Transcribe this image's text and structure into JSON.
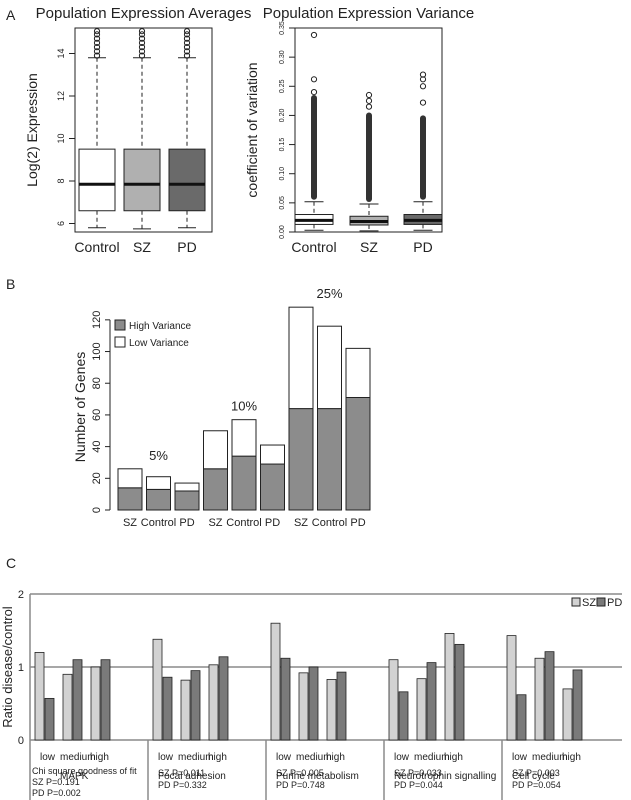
{
  "panels": {
    "A": "A",
    "B": "B",
    "C": "C"
  },
  "chart_data": [
    {
      "type": "box",
      "title": "Population Expression Averages",
      "ylabel": "Log(2) Expression",
      "categories": [
        "Control",
        "SZ",
        "PD"
      ],
      "ylim": [
        5.6,
        15.2
      ],
      "yticks": [
        6,
        8,
        10,
        12,
        14
      ],
      "colors": [
        "#ffffff",
        "#b0b0b0",
        "#6a6a6a"
      ],
      "boxes": [
        {
          "whisker_low": 5.8,
          "q1": 6.6,
          "median": 7.85,
          "q3": 9.5,
          "whisker_high": 13.8,
          "outliers": [
            13.9,
            14.1,
            14.3,
            14.5,
            14.7,
            14.9,
            15.05
          ]
        },
        {
          "whisker_low": 5.75,
          "q1": 6.6,
          "median": 7.85,
          "q3": 9.5,
          "whisker_high": 13.8,
          "outliers": [
            13.9,
            14.1,
            14.3,
            14.5,
            14.7,
            14.9,
            15.05
          ]
        },
        {
          "whisker_low": 5.8,
          "q1": 6.6,
          "median": 7.85,
          "q3": 9.5,
          "whisker_high": 13.8,
          "outliers": [
            13.9,
            14.1,
            14.3,
            14.5,
            14.7,
            14.9,
            15.05
          ]
        }
      ]
    },
    {
      "type": "box",
      "title": "Population Expression Variance",
      "ylabel": "coefficient of variation",
      "categories": [
        "Control",
        "SZ",
        "PD"
      ],
      "ylim": [
        0,
        0.35
      ],
      "yticks": [
        "0.00",
        "0.05",
        "0.10",
        "0.15",
        "0.20",
        "0.25",
        "0.30",
        "0.35"
      ],
      "colors": [
        "#ffffff",
        "#b0b0b0",
        "#6a6a6a"
      ],
      "boxes": [
        {
          "whisker_low": 0.003,
          "q1": 0.013,
          "median": 0.02,
          "q3": 0.03,
          "whisker_high": 0.052,
          "outliers_dense_to": 0.235,
          "outliers": [
            0.24,
            0.262,
            0.338
          ]
        },
        {
          "whisker_low": 0.002,
          "q1": 0.012,
          "median": 0.018,
          "q3": 0.027,
          "whisker_high": 0.048,
          "outliers_dense_to": 0.205,
          "outliers": [
            0.215,
            0.225,
            0.235
          ]
        },
        {
          "whisker_low": 0.003,
          "q1": 0.013,
          "median": 0.02,
          "q3": 0.03,
          "whisker_high": 0.052,
          "outliers_dense_to": 0.2,
          "outliers": [
            0.222,
            0.25,
            0.262,
            0.27
          ]
        }
      ]
    },
    {
      "type": "bar",
      "stacked": true,
      "ylabel": "Number of Genes",
      "ylim": [
        0,
        130
      ],
      "yticks": [
        0,
        20,
        40,
        60,
        80,
        100,
        120
      ],
      "categories": [
        "SZ",
        "Control",
        "PD",
        "SZ",
        "Control",
        "PD",
        "SZ",
        "Control",
        "PD"
      ],
      "group_labels": [
        "5%",
        "10%",
        "25%"
      ],
      "series": [
        {
          "name": "High Variance",
          "color": "#8c8c8c",
          "values": [
            14,
            13,
            12,
            26,
            34,
            29,
            64,
            64,
            71
          ]
        },
        {
          "name": "Low Variance",
          "color": "#ffffff",
          "values": [
            12,
            8,
            5,
            24,
            23,
            12,
            64,
            52,
            31
          ]
        }
      ],
      "legend_position": "top-left"
    },
    {
      "type": "bar",
      "ylabel": "Ratio disease/control",
      "ylim": [
        0,
        2
      ],
      "yticks": [
        0,
        1,
        2
      ],
      "reference_line": 1,
      "level_labels": [
        "low",
        "medium",
        "high"
      ],
      "legend": [
        {
          "name": "SZ",
          "color": "#d2d2d2"
        },
        {
          "name": "PD",
          "color": "#7a7a7a"
        }
      ],
      "legend_position": "top-right",
      "groups": [
        {
          "name": "MAPK",
          "sz": [
            1.2,
            0.9,
            1.0
          ],
          "pd": [
            0.57,
            1.1,
            1.1
          ],
          "notes": [
            "Chi square goodness of fit",
            "SZ   P=0.191",
            "PD   P=0.002"
          ]
        },
        {
          "name": "Focal adhesion",
          "sz": [
            1.38,
            0.82,
            1.03
          ],
          "pd": [
            0.86,
            0.95,
            1.14
          ],
          "notes": [
            "",
            "SZ P=0.011",
            "PD P=0.332"
          ]
        },
        {
          "name": "Purine metabolism",
          "sz": [
            1.6,
            0.92,
            0.83
          ],
          "pd": [
            1.12,
            1.0,
            0.93
          ],
          "notes": [
            "",
            "SZ P=0.005",
            "PD P=0.748"
          ]
        },
        {
          "name": "Neurotrophin signalling",
          "sz": [
            1.1,
            0.84,
            1.46
          ],
          "pd": [
            0.66,
            1.06,
            1.31
          ],
          "notes": [
            "",
            "SZ P=0.033",
            "PD P=0.044"
          ]
        },
        {
          "name": "Cell cycle",
          "sz": [
            1.43,
            1.12,
            0.7
          ],
          "pd": [
            0.62,
            1.21,
            0.96
          ],
          "notes": [
            "",
            "SZ P=0.003",
            "PD P=0.054"
          ]
        }
      ]
    }
  ]
}
